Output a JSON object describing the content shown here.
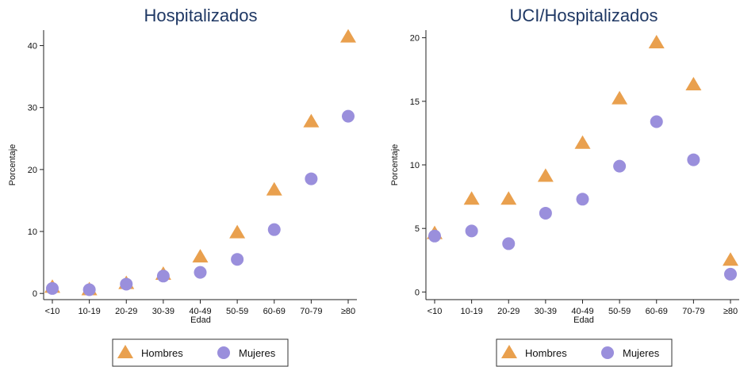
{
  "colors": {
    "hombres": "#E9A04E",
    "mujeres": "#9A8FDC",
    "title": "#1f3864"
  },
  "chart_data": [
    {
      "type": "scatter",
      "title": "Hospitalizados",
      "xlabel": "Edad",
      "ylabel": "Porcentaje",
      "categories": [
        "<10",
        "10-19",
        "20-29",
        "30-39",
        "40-49",
        "50-59",
        "60-69",
        "70-79",
        "≥80"
      ],
      "yticks": [
        0,
        10,
        20,
        30,
        40
      ],
      "ylim": [
        -1,
        42.5
      ],
      "legend_position": "bottom",
      "series": [
        {
          "name": "Hombres",
          "marker": "triangle",
          "values": [
            1.0,
            0.6,
            1.6,
            3.1,
            5.9,
            9.8,
            16.7,
            27.7,
            41.4
          ]
        },
        {
          "name": "Mujeres",
          "marker": "circle",
          "values": [
            0.8,
            0.6,
            1.5,
            2.8,
            3.4,
            5.5,
            10.3,
            18.5,
            28.6
          ]
        }
      ]
    },
    {
      "type": "scatter",
      "title": "UCI/Hospitalizados",
      "xlabel": "Edad",
      "ylabel": "Porcentaje",
      "categories": [
        "<10",
        "10-19",
        "20-29",
        "30-39",
        "40-49",
        "50-59",
        "60-69",
        "70-79",
        "≥80"
      ],
      "yticks": [
        0,
        5,
        10,
        15,
        20
      ],
      "ylim": [
        -0.6,
        20.6
      ],
      "legend_position": "bottom",
      "series": [
        {
          "name": "Hombres",
          "marker": "triangle",
          "values": [
            4.6,
            7.3,
            7.3,
            9.1,
            11.7,
            15.2,
            19.6,
            16.3,
            2.5
          ]
        },
        {
          "name": "Mujeres",
          "marker": "circle",
          "values": [
            4.4,
            4.8,
            3.8,
            6.2,
            7.3,
            9.9,
            13.4,
            10.4,
            1.4
          ]
        }
      ]
    }
  ]
}
